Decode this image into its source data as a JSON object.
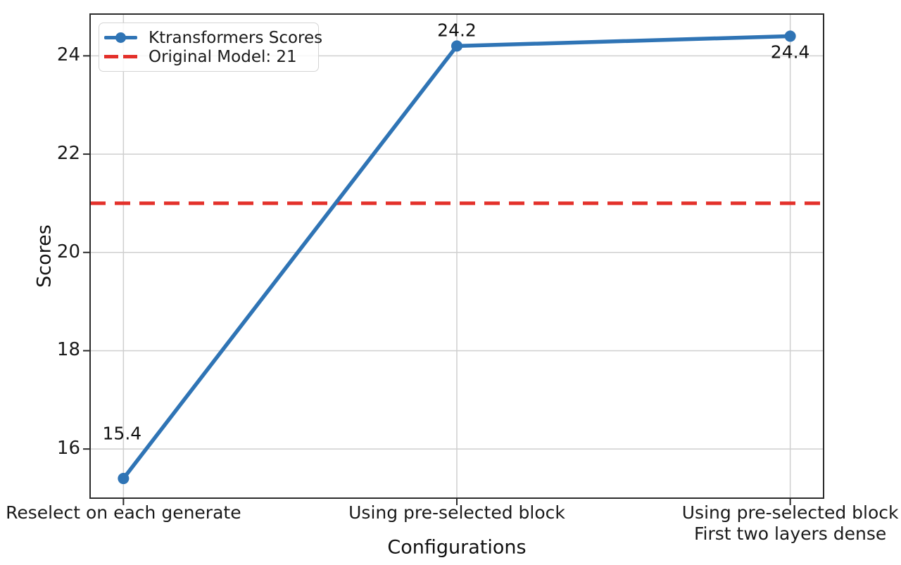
{
  "chart_data": {
    "type": "line",
    "xlabel": "Configurations",
    "ylabel": "Scores",
    "categories": [
      "Reselect on each generate",
      "Using pre-selected block",
      "Using pre-selected block\nFirst two layers dense"
    ],
    "series": [
      {
        "name": "Ktransformers Scores",
        "values": [
          15.4,
          24.2,
          24.4
        ],
        "point_labels": [
          "15.4",
          "24.2",
          "24.4"
        ],
        "color": "#2f74b5"
      }
    ],
    "reference_line": {
      "label": "Original Model: 21",
      "value": 21,
      "color": "#e3302a",
      "style": "dashed"
    },
    "ylim": [
      15.0,
      24.85
    ],
    "yticks": [
      16,
      18,
      20,
      22,
      24
    ],
    "xlim": [
      -0.1,
      2.1
    ],
    "grid": true,
    "legend_position": "upper left",
    "colors": {
      "grid": "#cfcfcf",
      "spine": "#2b2b2b",
      "text": "#1a1a1a"
    }
  }
}
